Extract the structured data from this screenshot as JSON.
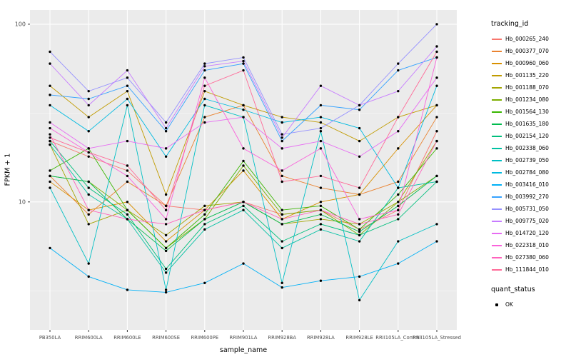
{
  "chart_data": {
    "type": "line",
    "title": "",
    "xlabel": "sample_name",
    "ylabel": "FPKM + 1",
    "y_scale": "log10",
    "yticks": [
      10,
      100
    ],
    "ylim": [
      2,
      120
    ],
    "panel_bg": "#EBEBEB",
    "grid_color": "#FFFFFF",
    "point_color": "#000000",
    "legend": {
      "title": "tracking_id",
      "position": "right"
    },
    "quant_legend": {
      "title": "quant_status",
      "items": [
        "OK"
      ]
    },
    "categories": [
      "PB350LA",
      "RRIM600LA",
      "RRIM600LE",
      "RRIM600SE",
      "RRIM600PE",
      "RRIM901LA",
      "RRIM928BA",
      "RRIM928LA",
      "RRIM928LE",
      "RRII105LA_Control",
      "RRII105LA_Stressed"
    ],
    "series": [
      {
        "name": "Hb_000265_240",
        "color": "#F8766D",
        "values": [
          22,
          18,
          15,
          9.5,
          9,
          10,
          8.5,
          9,
          7,
          9,
          25
        ]
      },
      {
        "name": "Hb_000377_070",
        "color": "#EA8331",
        "values": [
          14,
          8.5,
          13,
          9.5,
          30,
          35,
          14,
          12,
          11,
          13,
          30
        ]
      },
      {
        "name": "Hb_000960_060",
        "color": "#D89000",
        "values": [
          13,
          9,
          10,
          6,
          9,
          15,
          8,
          10,
          11,
          20,
          35
        ]
      },
      {
        "name": "Hb_001135_220",
        "color": "#C09B00",
        "values": [
          45,
          30,
          42,
          11,
          42,
          35,
          30,
          28,
          22,
          30,
          35
        ]
      },
      {
        "name": "Hb_001188_070",
        "color": "#A3A500",
        "values": [
          21,
          7.5,
          9,
          6.5,
          9.5,
          10,
          7.5,
          8,
          7.5,
          10,
          22
        ]
      },
      {
        "name": "Hb_001234_080",
        "color": "#7CAE00",
        "values": [
          14,
          13,
          9,
          5.5,
          8,
          16,
          8.5,
          9,
          6.5,
          10,
          14
        ]
      },
      {
        "name": "Hb_001564_130",
        "color": "#39B600",
        "values": [
          15,
          20,
          9,
          5.5,
          8.5,
          17,
          9,
          9.5,
          7,
          11,
          20
        ]
      },
      {
        "name": "Hb_001635_180",
        "color": "#00BB4E",
        "values": [
          14,
          13,
          8,
          5.3,
          8,
          10,
          7.5,
          8.5,
          6.8,
          9.5,
          14
        ]
      },
      {
        "name": "Hb_002154_120",
        "color": "#00BF7D",
        "values": [
          22,
          12,
          8.5,
          4.2,
          7.5,
          9.5,
          6,
          7.5,
          6.5,
          8,
          13
        ]
      },
      {
        "name": "Hb_002338_060",
        "color": "#00C1A3",
        "values": [
          21,
          11,
          8,
          4,
          7,
          9,
          5.5,
          7,
          6,
          12,
          13
        ]
      },
      {
        "name": "Hb_002739_050",
        "color": "#00BFC4",
        "values": [
          12,
          4.5,
          35,
          3.2,
          35,
          30,
          3.5,
          25,
          2.8,
          6,
          7.5
        ]
      },
      {
        "name": "Hb_002784_080",
        "color": "#00BAE0",
        "values": [
          35,
          25,
          38,
          18,
          38,
          33,
          28,
          30,
          26,
          12,
          45
        ]
      },
      {
        "name": "Hb_003416_010",
        "color": "#00B0F6",
        "values": [
          5.5,
          3.8,
          3.2,
          3.1,
          3.5,
          4.5,
          3.3,
          3.6,
          3.8,
          4.5,
          6
        ]
      },
      {
        "name": "Hb_003992_270",
        "color": "#35A2FF",
        "values": [
          40,
          38,
          45,
          25,
          55,
          60,
          22,
          35,
          33,
          55,
          65
        ]
      },
      {
        "name": "Hb_005731_050",
        "color": "#9590FF",
        "values": [
          70,
          42,
          50,
          28,
          60,
          65,
          24,
          26,
          35,
          60,
          100
        ]
      },
      {
        "name": "Hb_009775_020",
        "color": "#C77CFF",
        "values": [
          60,
          35,
          55,
          26,
          58,
          62,
          23,
          45,
          35,
          42,
          75
        ]
      },
      {
        "name": "Hb_014720_120",
        "color": "#E76BF3",
        "values": [
          28,
          20,
          22,
          20,
          28,
          30,
          20,
          22,
          18,
          25,
          50
        ]
      },
      {
        "name": "Hb_022318_010",
        "color": "#FA62DB",
        "values": [
          26,
          19,
          14,
          8,
          50,
          20,
          15,
          20,
          8,
          9,
          65
        ]
      },
      {
        "name": "Hb_027380_060",
        "color": "#FF62BC",
        "values": [
          24,
          9,
          8,
          7.5,
          9,
          10,
          8,
          9,
          7.5,
          8.5,
          22
        ]
      },
      {
        "name": "Hb_111844_010",
        "color": "#FF6A98",
        "values": [
          23,
          19,
          16,
          9,
          45,
          55,
          13,
          14,
          12,
          30,
          70
        ]
      }
    ]
  }
}
